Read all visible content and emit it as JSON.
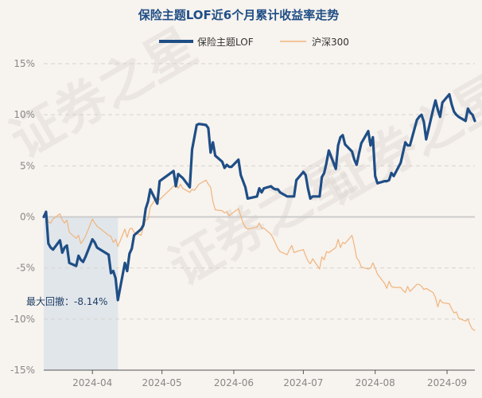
{
  "chart_data": {
    "type": "line",
    "title": "保险主题LOF近6个月累计收益率走势",
    "y_ticks": [
      "15%",
      "10%",
      "5%",
      "0%",
      "-5%",
      "-10%",
      "-15%"
    ],
    "y_tick_values": [
      15,
      10,
      5,
      0,
      -5,
      -10,
      -15
    ],
    "ylim": [
      -15,
      15
    ],
    "x_tick_labels": [
      "2024-04",
      "2024-05",
      "2024-06",
      "2024-07",
      "2024-08",
      "2024-09"
    ],
    "x_tick_dates": [
      "2024-04-01",
      "2024-05-01",
      "2024-06-01",
      "2024-07-01",
      "2024-08-01",
      "2024-09-01"
    ],
    "x_range": [
      "2024-03-11",
      "2024-09-13"
    ],
    "grid": true,
    "legend_position": "top",
    "max_drawdown_label": "最大回撤：-8.14%",
    "max_drawdown_range": [
      "2024-03-11",
      "2024-04-12"
    ],
    "watermark": "证券之星",
    "series": [
      {
        "name": "保险主题LOF",
        "color": "#1f4e86",
        "points": [
          [
            "2024-03-11",
            0.0
          ],
          [
            "2024-03-12",
            0.5
          ],
          [
            "2024-03-13",
            -2.6
          ],
          [
            "2024-03-14",
            -3.0
          ],
          [
            "2024-03-15",
            -3.2
          ],
          [
            "2024-03-18",
            -2.3
          ],
          [
            "2024-03-19",
            -3.5
          ],
          [
            "2024-03-20",
            -3.0
          ],
          [
            "2024-03-21",
            -2.8
          ],
          [
            "2024-03-22",
            -4.5
          ],
          [
            "2024-03-25",
            -4.8
          ],
          [
            "2024-03-26",
            -3.8
          ],
          [
            "2024-03-27",
            -4.2
          ],
          [
            "2024-03-28",
            -4.4
          ],
          [
            "2024-03-29",
            -3.9
          ],
          [
            "2024-04-01",
            -2.2
          ],
          [
            "2024-04-02",
            -2.5
          ],
          [
            "2024-04-03",
            -3.0
          ],
          [
            "2024-04-08",
            -3.7
          ],
          [
            "2024-04-09",
            -5.5
          ],
          [
            "2024-04-10",
            -5.3
          ],
          [
            "2024-04-11",
            -6.0
          ],
          [
            "2024-04-12",
            -8.14
          ],
          [
            "2024-04-15",
            -4.5
          ],
          [
            "2024-04-16",
            -5.3
          ],
          [
            "2024-04-17",
            -3.6
          ],
          [
            "2024-04-18",
            -3.1
          ],
          [
            "2024-04-19",
            -1.8
          ],
          [
            "2024-04-22",
            -1.2
          ],
          [
            "2024-04-23",
            -0.8
          ],
          [
            "2024-04-24",
            0.8
          ],
          [
            "2024-04-25",
            1.5
          ],
          [
            "2024-04-26",
            2.7
          ],
          [
            "2024-04-29",
            1.3
          ],
          [
            "2024-04-30",
            3.5
          ],
          [
            "2024-05-06",
            4.5
          ],
          [
            "2024-05-07",
            3.0
          ],
          [
            "2024-05-08",
            4.2
          ],
          [
            "2024-05-09",
            4.0
          ],
          [
            "2024-05-10",
            3.8
          ],
          [
            "2024-05-13",
            2.9
          ],
          [
            "2024-05-14",
            6.6
          ],
          [
            "2024-05-15",
            7.8
          ],
          [
            "2024-05-16",
            9.0
          ],
          [
            "2024-05-17",
            9.1
          ],
          [
            "2024-05-20",
            9.0
          ],
          [
            "2024-05-21",
            8.7
          ],
          [
            "2024-05-22",
            6.3
          ],
          [
            "2024-05-23",
            7.3
          ],
          [
            "2024-05-24",
            6.0
          ],
          [
            "2024-05-27",
            5.4
          ],
          [
            "2024-05-28",
            4.8
          ],
          [
            "2024-05-29",
            5.1
          ],
          [
            "2024-05-30",
            4.9
          ],
          [
            "2024-05-31",
            4.9
          ],
          [
            "2024-06-03",
            5.6
          ],
          [
            "2024-06-04",
            4.1
          ],
          [
            "2024-06-05",
            3.5
          ],
          [
            "2024-06-06",
            2.9
          ],
          [
            "2024-06-07",
            1.8
          ],
          [
            "2024-06-11",
            2.0
          ],
          [
            "2024-06-12",
            2.8
          ],
          [
            "2024-06-13",
            2.4
          ],
          [
            "2024-06-14",
            2.8
          ],
          [
            "2024-06-17",
            3.0
          ],
          [
            "2024-06-18",
            2.8
          ],
          [
            "2024-06-19",
            2.7
          ],
          [
            "2024-06-20",
            2.7
          ],
          [
            "2024-06-21",
            2.4
          ],
          [
            "2024-06-24",
            2.0
          ],
          [
            "2024-06-25",
            2.0
          ],
          [
            "2024-06-26",
            2.0
          ],
          [
            "2024-06-27",
            2.0
          ],
          [
            "2024-06-28",
            3.6
          ],
          [
            "2024-07-01",
            4.4
          ],
          [
            "2024-07-02",
            4.1
          ],
          [
            "2024-07-03",
            2.8
          ],
          [
            "2024-07-04",
            1.8
          ],
          [
            "2024-07-05",
            2.0
          ],
          [
            "2024-07-08",
            2.0
          ],
          [
            "2024-07-09",
            3.9
          ],
          [
            "2024-07-10",
            4.3
          ],
          [
            "2024-07-11",
            5.3
          ],
          [
            "2024-07-12",
            6.5
          ],
          [
            "2024-07-15",
            4.7
          ],
          [
            "2024-07-16",
            7.0
          ],
          [
            "2024-07-17",
            7.8
          ],
          [
            "2024-07-18",
            8.0
          ],
          [
            "2024-07-19",
            7.1
          ],
          [
            "2024-07-22",
            6.4
          ],
          [
            "2024-07-23",
            5.6
          ],
          [
            "2024-07-24",
            5.1
          ],
          [
            "2024-07-25",
            6.2
          ],
          [
            "2024-07-26",
            7.2
          ],
          [
            "2024-07-29",
            8.4
          ],
          [
            "2024-07-30",
            7.0
          ],
          [
            "2024-07-31",
            7.8
          ],
          [
            "2024-08-01",
            4.0
          ],
          [
            "2024-08-02",
            3.3
          ],
          [
            "2024-08-05",
            3.5
          ],
          [
            "2024-08-06",
            3.5
          ],
          [
            "2024-08-07",
            3.6
          ],
          [
            "2024-08-08",
            4.3
          ],
          [
            "2024-08-09",
            4.0
          ],
          [
            "2024-08-12",
            5.3
          ],
          [
            "2024-08-13",
            6.3
          ],
          [
            "2024-08-14",
            7.3
          ],
          [
            "2024-08-15",
            7.0
          ],
          [
            "2024-08-16",
            7.0
          ],
          [
            "2024-08-19",
            9.5
          ],
          [
            "2024-08-20",
            9.8
          ],
          [
            "2024-08-21",
            10.0
          ],
          [
            "2024-08-22",
            9.3
          ],
          [
            "2024-08-23",
            7.6
          ],
          [
            "2024-08-26",
            10.5
          ],
          [
            "2024-08-27",
            11.4
          ],
          [
            "2024-08-28",
            10.5
          ],
          [
            "2024-08-29",
            9.8
          ],
          [
            "2024-08-30",
            11.2
          ],
          [
            "2024-09-02",
            12.0
          ],
          [
            "2024-09-03",
            11.0
          ],
          [
            "2024-09-04",
            10.3
          ],
          [
            "2024-09-05",
            10.0
          ],
          [
            "2024-09-06",
            9.8
          ],
          [
            "2024-09-09",
            9.4
          ],
          [
            "2024-09-10",
            10.6
          ],
          [
            "2024-09-11",
            10.2
          ],
          [
            "2024-09-12",
            10.0
          ],
          [
            "2024-09-13",
            9.4
          ]
        ]
      },
      {
        "name": "沪深300",
        "color": "#f0b47d",
        "points": [
          [
            "2024-03-11",
            0.0
          ],
          [
            "2024-03-12",
            0.3
          ],
          [
            "2024-03-13",
            -0.5
          ],
          [
            "2024-03-14",
            -0.6
          ],
          [
            "2024-03-15",
            -0.2
          ],
          [
            "2024-03-18",
            0.3
          ],
          [
            "2024-03-19",
            -0.3
          ],
          [
            "2024-03-20",
            -0.6
          ],
          [
            "2024-03-21",
            -0.3
          ],
          [
            "2024-03-22",
            -1.5
          ],
          [
            "2024-03-25",
            -2.1
          ],
          [
            "2024-03-26",
            -1.8
          ],
          [
            "2024-03-27",
            -2.6
          ],
          [
            "2024-03-28",
            -2.3
          ],
          [
            "2024-03-29",
            -1.9
          ],
          [
            "2024-04-01",
            -0.2
          ],
          [
            "2024-04-02",
            -0.6
          ],
          [
            "2024-04-03",
            -0.9
          ],
          [
            "2024-04-08",
            -1.8
          ],
          [
            "2024-04-09",
            -1.9
          ],
          [
            "2024-04-10",
            -2.5
          ],
          [
            "2024-04-11",
            -2.2
          ],
          [
            "2024-04-12",
            -2.9
          ],
          [
            "2024-04-15",
            -1.2
          ],
          [
            "2024-04-16",
            -2.0
          ],
          [
            "2024-04-17",
            -1.2
          ],
          [
            "2024-04-18",
            -1.1
          ],
          [
            "2024-04-19",
            -1.5
          ],
          [
            "2024-04-22",
            -1.8
          ],
          [
            "2024-04-23",
            -1.0
          ],
          [
            "2024-04-24",
            -0.3
          ],
          [
            "2024-04-25",
            -0.2
          ],
          [
            "2024-04-26",
            1.0
          ],
          [
            "2024-04-29",
            2.0
          ],
          [
            "2024-04-30",
            1.7
          ],
          [
            "2024-05-06",
            3.0
          ],
          [
            "2024-05-07",
            3.3
          ],
          [
            "2024-05-08",
            2.8
          ],
          [
            "2024-05-09",
            3.2
          ],
          [
            "2024-05-10",
            2.8
          ],
          [
            "2024-05-13",
            2.4
          ],
          [
            "2024-05-14",
            2.7
          ],
          [
            "2024-05-15",
            2.6
          ],
          [
            "2024-05-16",
            2.9
          ],
          [
            "2024-05-17",
            3.2
          ],
          [
            "2024-05-20",
            3.6
          ],
          [
            "2024-05-21",
            3.2
          ],
          [
            "2024-05-22",
            2.9
          ],
          [
            "2024-05-23",
            1.5
          ],
          [
            "2024-05-24",
            0.7
          ],
          [
            "2024-05-27",
            0.6
          ],
          [
            "2024-05-28",
            0.4
          ],
          [
            "2024-05-29",
            0.5
          ],
          [
            "2024-05-30",
            0.1
          ],
          [
            "2024-05-31",
            0.3
          ],
          [
            "2024-06-03",
            0.8
          ],
          [
            "2024-06-04",
            0.1
          ],
          [
            "2024-06-05",
            -0.6
          ],
          [
            "2024-06-06",
            -1.0
          ],
          [
            "2024-06-07",
            -1.2
          ],
          [
            "2024-06-11",
            -1.0
          ],
          [
            "2024-06-12",
            -0.6
          ],
          [
            "2024-06-13",
            -1.1
          ],
          [
            "2024-06-14",
            -1.1
          ],
          [
            "2024-06-17",
            -1.7
          ],
          [
            "2024-06-18",
            -2.1
          ],
          [
            "2024-06-19",
            -2.6
          ],
          [
            "2024-06-20",
            -3.1
          ],
          [
            "2024-06-21",
            -3.4
          ],
          [
            "2024-06-24",
            -3.7
          ],
          [
            "2024-06-25",
            -3.2
          ],
          [
            "2024-06-26",
            -2.8
          ],
          [
            "2024-06-27",
            -3.5
          ],
          [
            "2024-06-28",
            -3.4
          ],
          [
            "2024-07-01",
            -3.2
          ],
          [
            "2024-07-02",
            -3.8
          ],
          [
            "2024-07-03",
            -4.3
          ],
          [
            "2024-07-04",
            -4.6
          ],
          [
            "2024-07-05",
            -4.1
          ],
          [
            "2024-07-08",
            -5.1
          ],
          [
            "2024-07-09",
            -3.9
          ],
          [
            "2024-07-10",
            -4.2
          ],
          [
            "2024-07-11",
            -3.4
          ],
          [
            "2024-07-12",
            -3.5
          ],
          [
            "2024-07-15",
            -3.0
          ],
          [
            "2024-07-16",
            -2.2
          ],
          [
            "2024-07-17",
            -3.0
          ],
          [
            "2024-07-18",
            -2.5
          ],
          [
            "2024-07-19",
            -2.6
          ],
          [
            "2024-07-22",
            -1.8
          ],
          [
            "2024-07-23",
            -2.8
          ],
          [
            "2024-07-24",
            -4.0
          ],
          [
            "2024-07-25",
            -4.3
          ],
          [
            "2024-07-26",
            -4.9
          ],
          [
            "2024-07-29",
            -5.1
          ],
          [
            "2024-07-30",
            -5.0
          ],
          [
            "2024-07-31",
            -4.5
          ],
          [
            "2024-08-01",
            -5.0
          ],
          [
            "2024-08-02",
            -5.6
          ],
          [
            "2024-08-05",
            -6.5
          ],
          [
            "2024-08-06",
            -7.0
          ],
          [
            "2024-08-07",
            -6.3
          ],
          [
            "2024-08-08",
            -6.8
          ],
          [
            "2024-08-09",
            -6.9
          ],
          [
            "2024-08-12",
            -6.9
          ],
          [
            "2024-08-13",
            -7.2
          ],
          [
            "2024-08-14",
            -7.4
          ],
          [
            "2024-08-15",
            -6.8
          ],
          [
            "2024-08-16",
            -7.3
          ],
          [
            "2024-08-19",
            -6.6
          ],
          [
            "2024-08-20",
            -6.6
          ],
          [
            "2024-08-21",
            -6.8
          ],
          [
            "2024-08-22",
            -7.1
          ],
          [
            "2024-08-23",
            -7.0
          ],
          [
            "2024-08-26",
            -7.4
          ],
          [
            "2024-08-27",
            -7.9
          ],
          [
            "2024-08-28",
            -8.8
          ],
          [
            "2024-08-29",
            -8.1
          ],
          [
            "2024-08-30",
            -8.4
          ],
          [
            "2024-09-02",
            -8.5
          ],
          [
            "2024-09-03",
            -9.0
          ],
          [
            "2024-09-04",
            -9.4
          ],
          [
            "2024-09-05",
            -9.3
          ],
          [
            "2024-09-06",
            -9.9
          ],
          [
            "2024-09-09",
            -10.2
          ],
          [
            "2024-09-10",
            -10.0
          ],
          [
            "2024-09-11",
            -10.6
          ],
          [
            "2024-09-12",
            -11.0
          ],
          [
            "2024-09-13",
            -11.1
          ]
        ]
      }
    ]
  }
}
